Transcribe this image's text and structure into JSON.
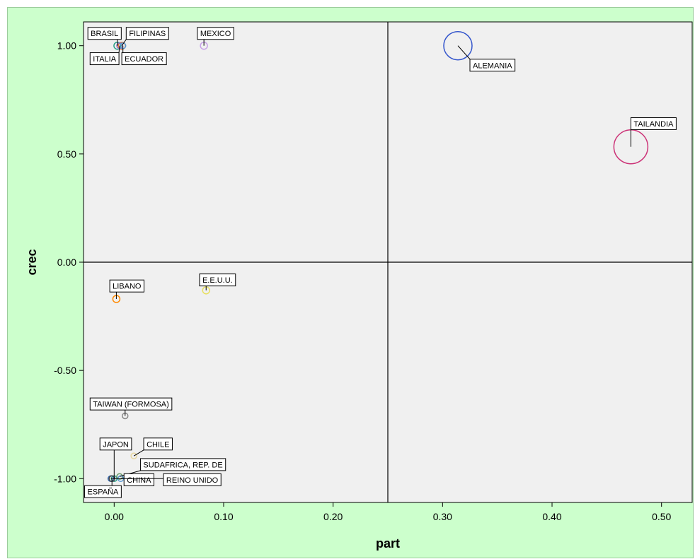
{
  "chart_data": {
    "type": "scatter",
    "xlabel": "part",
    "ylabel": "crec",
    "xlim": [
      -0.028,
      0.528
    ],
    "ylim": [
      -1.11,
      1.11
    ],
    "xticks": [
      "0.00",
      "0.10",
      "0.20",
      "0.30",
      "0.40",
      "0.50"
    ],
    "xtick_values": [
      0.0,
      0.1,
      0.2,
      0.3,
      0.4,
      0.5
    ],
    "yticks": [
      "1.00",
      "0.50",
      "0.00",
      "-0.50",
      "-1.00"
    ],
    "ytick_values": [
      1.0,
      0.5,
      0.0,
      -0.5,
      -1.0
    ],
    "reference_lines": {
      "x": 0.25,
      "y": 0.0
    },
    "grid": false,
    "background": "#ccffcc",
    "plot_background": "#f0f0f0",
    "points": [
      {
        "label": "BRASIL",
        "x": 0.003,
        "y": 1.0,
        "r": 5,
        "color": "#2ca089",
        "lx": -0.024,
        "ly": 1.057
      },
      {
        "label": "FILIPINAS",
        "x": 0.007,
        "y": 1.0,
        "r": 5,
        "color": "#e07b39",
        "lx": 0.011,
        "ly": 1.057
      },
      {
        "label": "ITALIA",
        "x": 0.005,
        "y": 1.0,
        "r": 4,
        "color": "#8f6fc8",
        "lx": -0.022,
        "ly": 0.94
      },
      {
        "label": "ECUADOR",
        "x": 0.008,
        "y": 1.0,
        "r": 4,
        "color": "#5a9bd5",
        "lx": 0.007,
        "ly": 0.94
      },
      {
        "label": "MEXICO",
        "x": 0.082,
        "y": 1.0,
        "r": 5,
        "color": "#c8a2e8",
        "lx": 0.076,
        "ly": 1.057
      },
      {
        "label": "ALEMANIA",
        "x": 0.314,
        "y": 1.0,
        "r": 20,
        "color": "#3355cc",
        "lx": 0.325,
        "ly": 0.91
      },
      {
        "label": "TAILANDIA",
        "x": 0.472,
        "y": 0.533,
        "r": 24,
        "color": "#cc3377",
        "lx": 0.472,
        "ly": 0.64
      },
      {
        "label": "LIBANO",
        "x": 0.002,
        "y": -0.17,
        "r": 5,
        "color": "#ff8800",
        "lx": -0.004,
        "ly": -0.11
      },
      {
        "label": "E.E.U.U.",
        "x": 0.084,
        "y": -0.13,
        "r": 5,
        "color": "#e8e060",
        "lx": 0.078,
        "ly": -0.082
      },
      {
        "label": "TAIWAN (FORMOSA)",
        "x": 0.01,
        "y": -0.71,
        "r": 4,
        "color": "#888888",
        "lx": -0.022,
        "ly": -0.655
      },
      {
        "label": "JAPON",
        "x": 0.0,
        "y": -1.0,
        "r": 4,
        "color": "#2ca089",
        "lx": -0.013,
        "ly": -0.84
      },
      {
        "label": "CHILE",
        "x": 0.018,
        "y": -0.895,
        "r": 4,
        "color": "#e8d8a0",
        "lx": 0.027,
        "ly": -0.84
      },
      {
        "label": "SUDAFRICA, REP. DE",
        "x": 0.005,
        "y": -0.99,
        "r": 4,
        "color": "#6a9a6a",
        "lx": 0.024,
        "ly": -0.935
      },
      {
        "label": "CHINA",
        "x": -0.003,
        "y": -1.0,
        "r": 4,
        "color": "#3366aa",
        "lx": 0.009,
        "ly": -1.005
      },
      {
        "label": "REINO UNIDO",
        "x": 0.006,
        "y": -1.0,
        "r": 4,
        "color": "#5a9bd5",
        "lx": 0.045,
        "ly": -1.005
      },
      {
        "label": "ESPAÑA",
        "x": -0.002,
        "y": -1.0,
        "r": 4,
        "color": "#444444",
        "lx": -0.027,
        "ly": -1.06
      }
    ]
  }
}
